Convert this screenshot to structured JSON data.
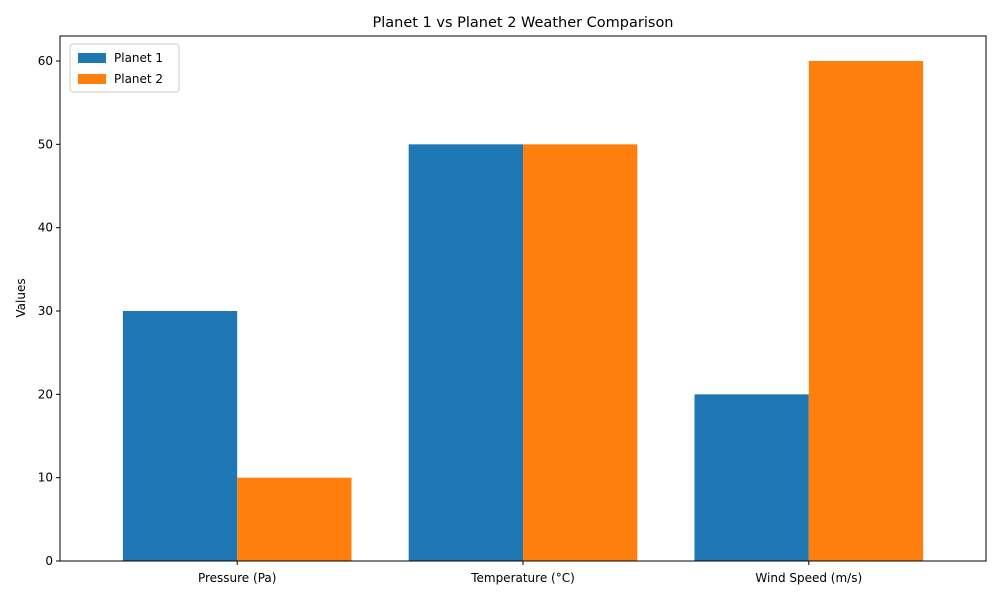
{
  "chart_data": {
    "type": "bar",
    "title": "Planet 1 vs Planet 2 Weather Comparison",
    "xlabel": "",
    "ylabel": "Values",
    "categories": [
      "Pressure (Pa)",
      "Temperature (°C)",
      "Wind Speed (m/s)"
    ],
    "series": [
      {
        "name": "Planet 1",
        "values": [
          30,
          50,
          20
        ],
        "color": "#1f77b4"
      },
      {
        "name": "Planet 2",
        "values": [
          10,
          50,
          60
        ],
        "color": "#ff7f0e"
      }
    ],
    "ylim": [
      0,
      63
    ],
    "yticks": [
      0,
      10,
      20,
      30,
      40,
      50,
      60
    ],
    "grid": false,
    "legend_position": "top-left"
  }
}
